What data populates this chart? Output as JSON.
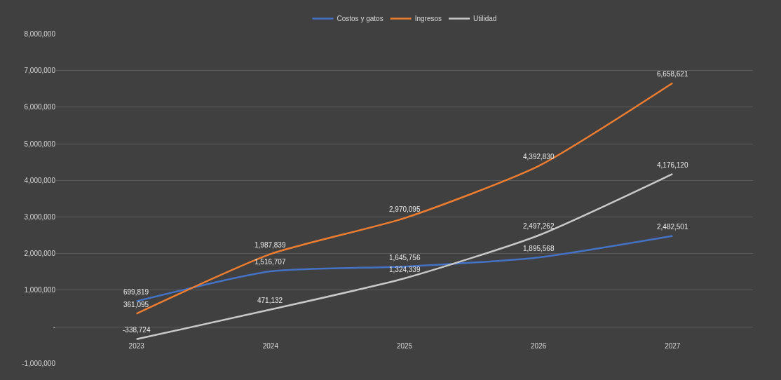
{
  "chart_data": {
    "type": "line",
    "categories": [
      "2023",
      "2024",
      "2025",
      "2026",
      "2027"
    ],
    "series": [
      {
        "name": "Costos y gatos",
        "color": "#4472c4",
        "values": [
          699819,
          1516707,
          1645756,
          1895568,
          2482501
        ],
        "value_labels": [
          "699,819",
          "1,516,707",
          "1,645,756",
          "1,895,568",
          "2,482,501"
        ]
      },
      {
        "name": "Ingresos",
        "color": "#ed7d31",
        "values": [
          361095,
          1987839,
          2970095,
          4392830,
          6658621
        ],
        "value_labels": [
          "361,095",
          "1,987,839",
          "2,970,095",
          "4,392,830",
          "6,658,621"
        ]
      },
      {
        "name": "Utilidad",
        "color": "#c9c9c9",
        "values": [
          -338724,
          471132,
          1324339,
          2497262,
          4176120
        ],
        "value_labels": [
          "-338,724",
          "471,132",
          "1,324,339",
          "2,497,262",
          "4,176,120"
        ]
      }
    ],
    "ylim": [
      -1000000,
      8000000
    ],
    "yticks": [
      {
        "value": -1000000,
        "label": "-1,000,000"
      },
      {
        "value": 0,
        "label": "-"
      },
      {
        "value": 1000000,
        "label": "1,000,000"
      },
      {
        "value": 2000000,
        "label": "2,000,000"
      },
      {
        "value": 3000000,
        "label": "3,000,000"
      },
      {
        "value": 4000000,
        "label": "4,000,000"
      },
      {
        "value": 5000000,
        "label": "5,000,000"
      },
      {
        "value": 6000000,
        "label": "6,000,000"
      },
      {
        "value": 7000000,
        "label": "7,000,000"
      },
      {
        "value": 8000000,
        "label": "8,000,000"
      }
    ],
    "grid": "y",
    "legend": "top",
    "marker": "none",
    "line_style": "solid"
  }
}
